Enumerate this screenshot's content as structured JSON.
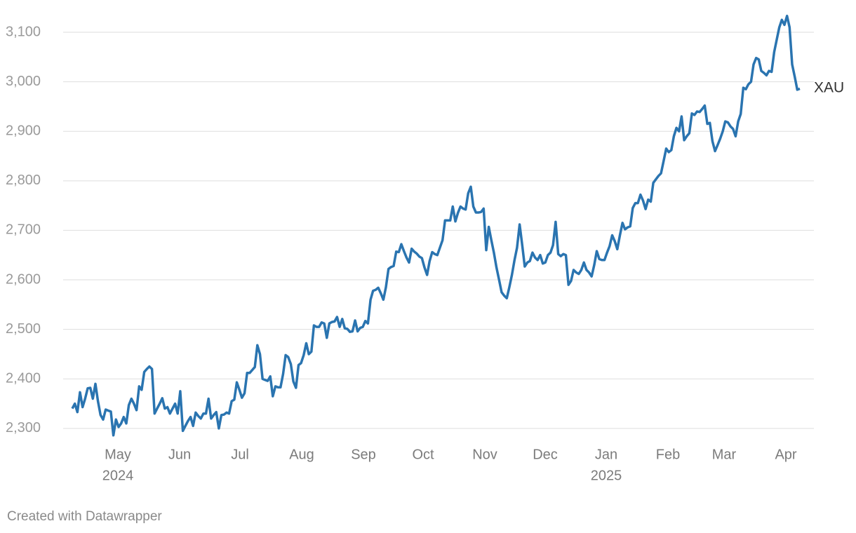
{
  "chart_data": {
    "type": "line",
    "series": [
      {
        "name": "XAU",
        "color": "#2a74b0",
        "values": [
          2340,
          2350,
          2333,
          2373,
          2343,
          2360,
          2381,
          2382,
          2360,
          2390,
          2355,
          2327,
          2318,
          2338,
          2336,
          2334,
          2286,
          2318,
          2303,
          2310,
          2323,
          2310,
          2347,
          2360,
          2350,
          2337,
          2385,
          2378,
          2414,
          2420,
          2425,
          2420,
          2330,
          2340,
          2350,
          2361,
          2340,
          2343,
          2330,
          2340,
          2350,
          2330,
          2375,
          2295,
          2305,
          2315,
          2323,
          2305,
          2332,
          2325,
          2320,
          2330,
          2330,
          2360,
          2320,
          2327,
          2333,
          2300,
          2327,
          2328,
          2332,
          2330,
          2355,
          2358,
          2393,
          2378,
          2362,
          2371,
          2412,
          2412,
          2418,
          2424,
          2468,
          2450,
          2400,
          2398,
          2396,
          2405,
          2365,
          2385,
          2383,
          2383,
          2410,
          2448,
          2444,
          2430,
          2395,
          2382,
          2428,
          2432,
          2448,
          2472,
          2450,
          2455,
          2508,
          2505,
          2505,
          2514,
          2512,
          2483,
          2512,
          2515,
          2516,
          2525,
          2505,
          2521,
          2502,
          2501,
          2495,
          2496,
          2518,
          2496,
          2503,
          2505,
          2517,
          2512,
          2560,
          2578,
          2580,
          2584,
          2573,
          2560,
          2585,
          2622,
          2626,
          2628,
          2657,
          2656,
          2672,
          2658,
          2645,
          2635,
          2663,
          2657,
          2653,
          2647,
          2644,
          2625,
          2610,
          2638,
          2656,
          2652,
          2650,
          2665,
          2680,
          2720,
          2720,
          2720,
          2748,
          2718,
          2735,
          2748,
          2744,
          2742,
          2775,
          2788,
          2748,
          2736,
          2736,
          2737,
          2744,
          2660,
          2707,
          2680,
          2655,
          2625,
          2600,
          2575,
          2568,
          2563,
          2585,
          2610,
          2640,
          2665,
          2712,
          2670,
          2627,
          2635,
          2638,
          2655,
          2645,
          2640,
          2650,
          2633,
          2635,
          2650,
          2655,
          2670,
          2717,
          2652,
          2648,
          2652,
          2650,
          2590,
          2598,
          2620,
          2615,
          2612,
          2620,
          2635,
          2620,
          2615,
          2607,
          2630,
          2658,
          2642,
          2640,
          2640,
          2655,
          2668,
          2690,
          2678,
          2662,
          2690,
          2715,
          2702,
          2706,
          2708,
          2745,
          2755,
          2755,
          2772,
          2760,
          2743,
          2762,
          2758,
          2796,
          2803,
          2810,
          2815,
          2840,
          2865,
          2858,
          2862,
          2890,
          2907,
          2900,
          2930,
          2882,
          2890,
          2896,
          2936,
          2933,
          2940,
          2939,
          2945,
          2952,
          2915,
          2917,
          2880,
          2860,
          2872,
          2885,
          2900,
          2920,
          2918,
          2910,
          2905,
          2890,
          2920,
          2935,
          2988,
          2985,
          2995,
          3000,
          3035,
          3048,
          3045,
          3022,
          3018,
          3013,
          3022,
          3020,
          3060,
          3085,
          3110,
          3125,
          3115,
          3133,
          3110,
          3035,
          3010,
          2984,
          2986
        ]
      }
    ],
    "ylim": [
      2280,
      3140
    ],
    "yticks": [
      {
        "value": 2300,
        "label": "2,300"
      },
      {
        "value": 2400,
        "label": "2,400"
      },
      {
        "value": 2500,
        "label": "2,500"
      },
      {
        "value": 2600,
        "label": "2,600"
      },
      {
        "value": 2700,
        "label": "2,700"
      },
      {
        "value": 2800,
        "label": "2,800"
      },
      {
        "value": 2900,
        "label": "2,900"
      },
      {
        "value": 3000,
        "label": "3,000"
      },
      {
        "value": 3100,
        "label": "3,100"
      }
    ],
    "xticks": [
      {
        "value": "2024-05",
        "label": "May"
      },
      {
        "value": "2024-06",
        "label": "Jun"
      },
      {
        "value": "2024-07",
        "label": "Jul"
      },
      {
        "value": "2024-08",
        "label": "Aug"
      },
      {
        "value": "2024-09",
        "label": "Sep"
      },
      {
        "value": "2024-10",
        "label": "Oct"
      },
      {
        "value": "2024-11",
        "label": "Nov"
      },
      {
        "value": "2024-12",
        "label": "Dec"
      },
      {
        "value": "2025-01",
        "label": "Jan"
      },
      {
        "value": "2025-02",
        "label": "Feb"
      },
      {
        "value": "2025-03",
        "label": "Mar"
      },
      {
        "value": "2025-04",
        "label": "Apr"
      }
    ],
    "x_year_labels": [
      {
        "value": "2024-05",
        "label": "2024"
      },
      {
        "value": "2025-01",
        "label": "2025"
      }
    ],
    "grid": true,
    "footer": "Created with Datawrapper"
  }
}
